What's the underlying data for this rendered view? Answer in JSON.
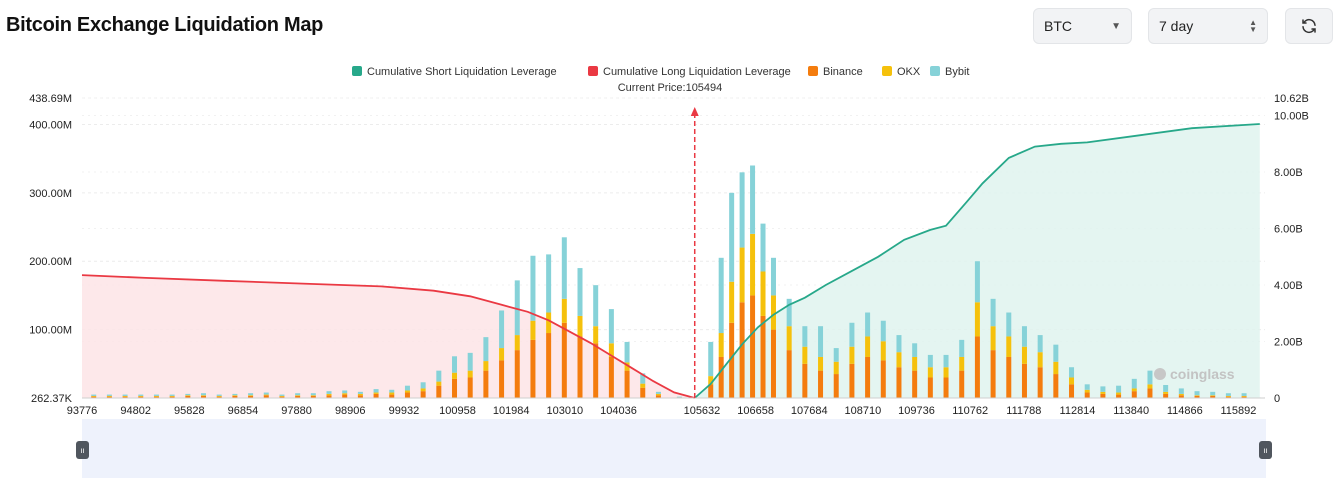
{
  "header": {
    "title": "Bitcoin Exchange Liquidation Map",
    "symbol_select": "BTC",
    "range_select": "7 day"
  },
  "icons": {
    "refresh": "refresh-icon",
    "dropdown": "caret-down-icon",
    "stepper": "up-down-icon"
  },
  "chart_data": {
    "type": "bar",
    "title": "",
    "current_price_label": "Current Price:105494",
    "current_price": 105494,
    "watermark": "coinglass",
    "legend": [
      {
        "name": "Cumulative Short Liquidation Leverage",
        "color": "#27a88a"
      },
      {
        "name": "Cumulative Long Liquidation Leverage",
        "color": "#ea3943"
      },
      {
        "name": "Binance",
        "color": "#f47c0e"
      },
      {
        "name": "OKX",
        "color": "#f5c10c"
      },
      {
        "name": "Bybit",
        "color": "#86d2d8"
      }
    ],
    "x_tick_labels": [
      "93776",
      "94802",
      "95828",
      "96854",
      "97880",
      "98906",
      "99932",
      "100958",
      "101984",
      "103010",
      "104036",
      "105632",
      "106658",
      "107684",
      "108710",
      "109736",
      "110762",
      "111788",
      "112814",
      "113840",
      "114866",
      "115892"
    ],
    "x_range": [
      93776,
      116400
    ],
    "y_left_ticks": [
      "262.37K",
      "100.00M",
      "200.00M",
      "300.00M",
      "400.00M",
      "438.69M"
    ],
    "y_left_range": [
      0,
      438.69
    ],
    "y_left_unit": "M",
    "y_right_ticks": [
      "0",
      "2.00B",
      "4.00B",
      "6.00B",
      "8.00B",
      "10.00B",
      "10.62B"
    ],
    "y_right_range": [
      0,
      10.62
    ],
    "y_right_unit": "B",
    "grid": true,
    "legend_position": "top-center",
    "exchange_bars": {
      "x": [
        94000,
        94300,
        94600,
        94900,
        95200,
        95500,
        95800,
        96100,
        96400,
        96700,
        97000,
        97300,
        97600,
        97900,
        98200,
        98500,
        98800,
        99100,
        99400,
        99700,
        100000,
        100300,
        100600,
        100900,
        101200,
        101500,
        101800,
        102100,
        102400,
        102700,
        103000,
        103300,
        103600,
        103900,
        104200,
        104500,
        104800,
        105200,
        105800,
        106000,
        106200,
        106400,
        106600,
        106800,
        107000,
        107300,
        107600,
        107900,
        108200,
        108500,
        108800,
        109100,
        109400,
        109700,
        110000,
        110300,
        110600,
        110900,
        111200,
        111500,
        111800,
        112100,
        112400,
        112700,
        113000,
        113300,
        113600,
        113900,
        114200,
        114500,
        114800,
        115100,
        115400,
        115700,
        116000
      ],
      "binance": [
        2,
        2,
        2,
        2,
        2,
        2,
        3,
        3,
        2,
        3,
        3,
        4,
        2,
        3,
        3,
        4,
        5,
        4,
        6,
        5,
        8,
        10,
        18,
        28,
        30,
        40,
        55,
        70,
        85,
        95,
        110,
        90,
        80,
        60,
        40,
        15,
        4,
        1,
        20,
        60,
        110,
        140,
        150,
        120,
        100,
        70,
        50,
        40,
        35,
        50,
        60,
        55,
        45,
        40,
        30,
        30,
        40,
        90,
        70,
        60,
        50,
        45,
        35,
        20,
        8,
        6,
        5,
        10,
        14,
        6,
        4,
        3,
        3,
        2,
        2
      ],
      "okx": [
        1,
        1,
        1,
        1,
        1,
        1,
        1,
        1,
        1,
        1,
        1,
        1,
        1,
        1,
        1,
        2,
        2,
        2,
        2,
        3,
        3,
        4,
        6,
        9,
        10,
        14,
        18,
        22,
        28,
        30,
        35,
        30,
        25,
        20,
        12,
        6,
        2,
        0,
        12,
        35,
        60,
        80,
        90,
        65,
        50,
        35,
        25,
        20,
        18,
        25,
        30,
        28,
        22,
        20,
        15,
        15,
        20,
        50,
        35,
        30,
        25,
        22,
        18,
        10,
        4,
        3,
        3,
        4,
        6,
        3,
        2,
        1,
        1,
        1,
        1
      ],
      "bybit": [
        2,
        2,
        2,
        2,
        2,
        2,
        2,
        3,
        2,
        2,
        3,
        3,
        2,
        3,
        3,
        4,
        4,
        3,
        5,
        4,
        7,
        9,
        16,
        24,
        26,
        35,
        55,
        80,
        95,
        85,
        90,
        70,
        60,
        50,
        30,
        15,
        3,
        1,
        50,
        110,
        130,
        110,
        100,
        70,
        55,
        40,
        30,
        45,
        20,
        35,
        35,
        30,
        25,
        20,
        18,
        18,
        25,
        60,
        40,
        35,
        30,
        25,
        25,
        15,
        8,
        8,
        10,
        14,
        20,
        10,
        8,
        6,
        5,
        4,
        4
      ]
    },
    "cumulative_long": {
      "x": [
        93776,
        95000,
        96500,
        98000,
        99500,
        100500,
        101200,
        101800,
        102300,
        102700,
        103100,
        103500,
        103900,
        104300,
        104700,
        105100,
        105494
      ],
      "values": [
        4.35,
        4.25,
        4.15,
        4.05,
        3.95,
        3.8,
        3.6,
        3.3,
        3.05,
        2.75,
        2.35,
        1.95,
        1.5,
        1.05,
        0.6,
        0.2,
        0.0
      ]
    },
    "cumulative_short": {
      "x": [
        105494,
        105800,
        106100,
        106400,
        106700,
        107000,
        107300,
        107600,
        108000,
        108500,
        109000,
        109500,
        110000,
        110300,
        110700,
        111000,
        111500,
        112000,
        112500,
        113000,
        114000,
        115000,
        116300
      ],
      "values": [
        0.0,
        0.5,
        1.2,
        1.9,
        2.5,
        2.95,
        3.3,
        3.55,
        4.0,
        4.5,
        5.0,
        5.6,
        5.95,
        6.1,
        6.95,
        7.6,
        8.5,
        8.9,
        9.0,
        9.05,
        9.3,
        9.55,
        9.7
      ]
    }
  }
}
